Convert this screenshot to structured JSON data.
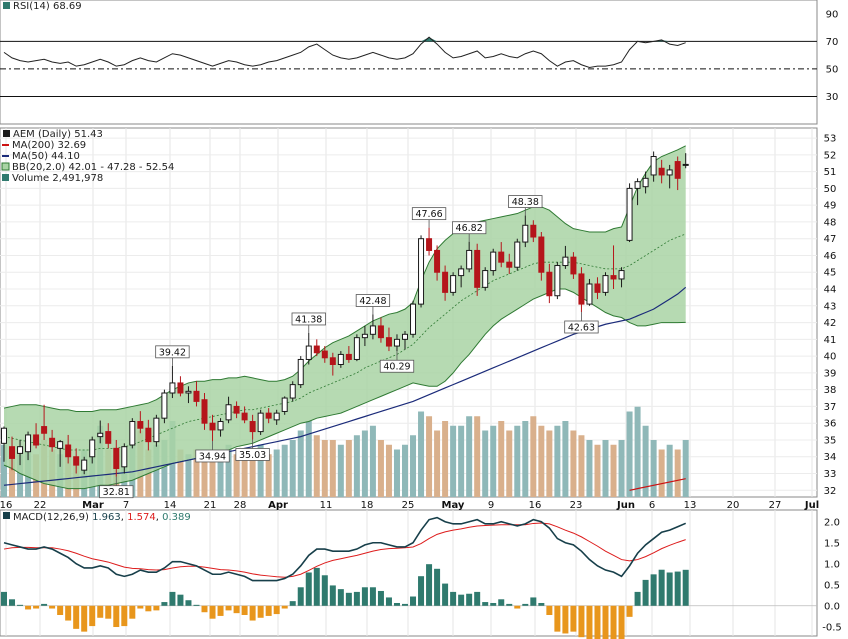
{
  "colors": {
    "up": "#1a1a1a",
    "down": "#b5151b",
    "band_fill": "#a9d4a4",
    "band_line": "#2f7a33",
    "ma200": "#cc1111",
    "ma50": "#1b2b7a",
    "vol_up": "#8fb8b8",
    "vol_down": "#d9b08c",
    "macd_line": "#173f4a",
    "signal_line": "#dd1c1c",
    "hist_pos": "#2f7a6e",
    "hist_neg": "#e8961c",
    "rsi_line": "#222222",
    "rsi_fill": "#2f7a6e"
  },
  "rsi": {
    "label": "RSI(14) 68.69",
    "ticks": [
      "90",
      "70",
      "50",
      "30"
    ],
    "ylim": [
      10,
      100
    ]
  },
  "price": {
    "label": "AEM (Daily) 51.43",
    "legend": [
      {
        "text": "MA(200) 32.69",
        "color": "#cc1111"
      },
      {
        "text": "MA(50) 44.10",
        "color": "#1b2b7a"
      },
      {
        "text": "BB(20,2.0) 42.01 - 47.28 - 52.54",
        "color": "#2f7a33"
      },
      {
        "text": "Volume 2,491,978",
        "color": "#2f7a6e"
      }
    ],
    "ticks": [
      "53",
      "52",
      "51",
      "50",
      "49",
      "48",
      "47",
      "46",
      "45",
      "44",
      "43",
      "42",
      "41",
      "40",
      "39",
      "38",
      "37",
      "36",
      "35",
      "34",
      "33",
      "32"
    ]
  },
  "xaxis": [
    {
      "label": "16",
      "month": false
    },
    {
      "label": "22",
      "month": false
    },
    {
      "label": "Mar",
      "month": true
    },
    {
      "label": "7",
      "month": false
    },
    {
      "label": "14",
      "month": false
    },
    {
      "label": "21",
      "month": false
    },
    {
      "label": "28",
      "month": false
    },
    {
      "label": "Apr",
      "month": true
    },
    {
      "label": "11",
      "month": false
    },
    {
      "label": "18",
      "month": false
    },
    {
      "label": "25",
      "month": false
    },
    {
      "label": "May",
      "month": true
    },
    {
      "label": "9",
      "month": false
    },
    {
      "label": "16",
      "month": false
    },
    {
      "label": "23",
      "month": false
    },
    {
      "label": "Jun",
      "month": true
    },
    {
      "label": "6",
      "month": false
    },
    {
      "label": "13",
      "month": false
    },
    {
      "label": "20",
      "month": false
    },
    {
      "label": "27",
      "month": false
    },
    {
      "label": "Jul",
      "month": true
    }
  ],
  "macd": {
    "label_prefix": "MACD(12,26,9)",
    "macd_value": "1.963",
    "signal_value": "1.574",
    "hist_value": "0.389",
    "ticks": [
      "2.0",
      "1.5",
      "1.0",
      "0.5",
      "0.0",
      "-0.5"
    ]
  },
  "chart_data": {
    "type": "candlestick",
    "title": "AEM (Daily) 51.43",
    "ylim": [
      31.6,
      53.6
    ],
    "candles": [
      {
        "o": 34.8,
        "h": 35.8,
        "l": 33.7,
        "c": 35.7
      },
      {
        "o": 34.6,
        "h": 35.2,
        "l": 33.2,
        "c": 33.9
      },
      {
        "o": 34.2,
        "h": 35.0,
        "l": 33.5,
        "c": 34.6
      },
      {
        "o": 34.3,
        "h": 35.5,
        "l": 33.8,
        "c": 35.3
      },
      {
        "o": 35.3,
        "h": 36.0,
        "l": 34.5,
        "c": 34.7
      },
      {
        "o": 35.8,
        "h": 37.1,
        "l": 35.0,
        "c": 35.4
      },
      {
        "o": 35.1,
        "h": 35.6,
        "l": 34.3,
        "c": 34.6
      },
      {
        "o": 34.5,
        "h": 35.0,
        "l": 33.4,
        "c": 34.9
      },
      {
        "o": 34.7,
        "h": 35.3,
        "l": 33.6,
        "c": 34.0
      },
      {
        "o": 34.0,
        "h": 34.5,
        "l": 33.0,
        "c": 33.5
      },
      {
        "o": 33.2,
        "h": 34.0,
        "l": 32.96,
        "c": 33.8
      },
      {
        "o": 34.0,
        "h": 35.2,
        "l": 33.6,
        "c": 35.0
      },
      {
        "o": 35.2,
        "h": 36.16,
        "l": 34.8,
        "c": 35.4
      },
      {
        "o": 35.5,
        "h": 36.0,
        "l": 34.5,
        "c": 34.8
      },
      {
        "o": 34.5,
        "h": 35.0,
        "l": 32.81,
        "c": 33.3
      },
      {
        "o": 33.4,
        "h": 34.8,
        "l": 33.0,
        "c": 34.6
      },
      {
        "o": 34.7,
        "h": 36.3,
        "l": 34.5,
        "c": 36.1
      },
      {
        "o": 36.1,
        "h": 36.72,
        "l": 35.4,
        "c": 35.7
      },
      {
        "o": 35.7,
        "h": 36.2,
        "l": 34.38,
        "c": 34.9
      },
      {
        "o": 34.9,
        "h": 36.5,
        "l": 34.6,
        "c": 36.3
      },
      {
        "o": 36.3,
        "h": 38.0,
        "l": 36.0,
        "c": 37.8
      },
      {
        "o": 37.8,
        "h": 39.42,
        "l": 37.5,
        "c": 38.4
      },
      {
        "o": 38.4,
        "h": 38.8,
        "l": 37.6,
        "c": 37.8
      },
      {
        "o": 37.8,
        "h": 38.2,
        "l": 37.2,
        "c": 37.9
      },
      {
        "o": 37.9,
        "h": 38.5,
        "l": 37.0,
        "c": 37.3
      },
      {
        "o": 37.4,
        "h": 37.8,
        "l": 35.6,
        "c": 36.0
      },
      {
        "o": 36.0,
        "h": 36.5,
        "l": 34.94,
        "c": 35.6
      },
      {
        "o": 35.6,
        "h": 36.3,
        "l": 35.2,
        "c": 36.1
      },
      {
        "o": 36.2,
        "h": 37.58,
        "l": 36.0,
        "c": 37.1
      },
      {
        "o": 37.0,
        "h": 37.3,
        "l": 36.3,
        "c": 36.6
      },
      {
        "o": 36.6,
        "h": 37.0,
        "l": 36.0,
        "c": 36.2
      },
      {
        "o": 36.1,
        "h": 36.5,
        "l": 35.03,
        "c": 35.5
      },
      {
        "o": 35.5,
        "h": 36.8,
        "l": 35.3,
        "c": 36.6
      },
      {
        "o": 36.6,
        "h": 36.9,
        "l": 36.0,
        "c": 36.3
      },
      {
        "o": 36.2,
        "h": 36.8,
        "l": 35.9,
        "c": 36.6
      },
      {
        "o": 36.7,
        "h": 37.6,
        "l": 36.5,
        "c": 37.5
      },
      {
        "o": 37.5,
        "h": 38.5,
        "l": 37.3,
        "c": 38.3
      },
      {
        "o": 38.3,
        "h": 40.0,
        "l": 38.1,
        "c": 39.8
      },
      {
        "o": 39.8,
        "h": 41.38,
        "l": 39.5,
        "c": 40.6
      },
      {
        "o": 40.6,
        "h": 41.0,
        "l": 40.0,
        "c": 40.2
      },
      {
        "o": 40.3,
        "h": 40.6,
        "l": 39.6,
        "c": 39.9
      },
      {
        "o": 39.9,
        "h": 40.2,
        "l": 38.84,
        "c": 39.5
      },
      {
        "o": 39.5,
        "h": 40.3,
        "l": 39.3,
        "c": 40.1
      },
      {
        "o": 40.1,
        "h": 40.6,
        "l": 39.6,
        "c": 39.8
      },
      {
        "o": 39.8,
        "h": 41.3,
        "l": 39.7,
        "c": 41.1
      },
      {
        "o": 41.1,
        "h": 41.8,
        "l": 40.6,
        "c": 41.3
      },
      {
        "o": 41.3,
        "h": 42.48,
        "l": 41.0,
        "c": 41.8
      },
      {
        "o": 41.8,
        "h": 42.3,
        "l": 40.8,
        "c": 41.1
      },
      {
        "o": 41.1,
        "h": 41.7,
        "l": 40.3,
        "c": 40.6
      },
      {
        "o": 40.6,
        "h": 41.3,
        "l": 40.29,
        "c": 41.0
      },
      {
        "o": 41.0,
        "h": 41.5,
        "l": 40.4,
        "c": 41.3
      },
      {
        "o": 41.3,
        "h": 43.3,
        "l": 41.1,
        "c": 43.1
      },
      {
        "o": 43.1,
        "h": 47.2,
        "l": 42.9,
        "c": 47.0
      },
      {
        "o": 47.0,
        "h": 47.66,
        "l": 46.0,
        "c": 46.3
      },
      {
        "o": 46.3,
        "h": 46.6,
        "l": 44.5,
        "c": 45.0
      },
      {
        "o": 45.0,
        "h": 45.4,
        "l": 43.3,
        "c": 43.8
      },
      {
        "o": 43.8,
        "h": 45.0,
        "l": 43.6,
        "c": 44.8
      },
      {
        "o": 44.8,
        "h": 45.4,
        "l": 44.1,
        "c": 45.2
      },
      {
        "o": 45.2,
        "h": 46.82,
        "l": 45.0,
        "c": 46.3
      },
      {
        "o": 46.3,
        "h": 46.7,
        "l": 43.59,
        "c": 44.1
      },
      {
        "o": 44.1,
        "h": 45.3,
        "l": 43.9,
        "c": 45.1
      },
      {
        "o": 45.1,
        "h": 46.4,
        "l": 44.8,
        "c": 46.2
      },
      {
        "o": 46.2,
        "h": 46.8,
        "l": 45.3,
        "c": 45.6
      },
      {
        "o": 45.6,
        "h": 46.1,
        "l": 44.9,
        "c": 45.3
      },
      {
        "o": 45.3,
        "h": 47.0,
        "l": 45.1,
        "c": 46.8
      },
      {
        "o": 46.8,
        "h": 48.38,
        "l": 46.5,
        "c": 47.8
      },
      {
        "o": 47.8,
        "h": 48.1,
        "l": 46.8,
        "c": 47.1
      },
      {
        "o": 47.1,
        "h": 47.4,
        "l": 44.5,
        "c": 45.0
      },
      {
        "o": 45.0,
        "h": 45.5,
        "l": 43.16,
        "c": 43.6
      },
      {
        "o": 43.6,
        "h": 45.6,
        "l": 43.4,
        "c": 45.4
      },
      {
        "o": 45.4,
        "h": 46.57,
        "l": 45.2,
        "c": 45.9
      },
      {
        "o": 45.9,
        "h": 46.2,
        "l": 44.6,
        "c": 44.9
      },
      {
        "o": 44.9,
        "h": 45.3,
        "l": 42.63,
        "c": 43.1
      },
      {
        "o": 43.1,
        "h": 44.6,
        "l": 43.0,
        "c": 44.3
      },
      {
        "o": 44.3,
        "h": 44.7,
        "l": 43.4,
        "c": 43.8
      },
      {
        "o": 43.8,
        "h": 45.0,
        "l": 43.6,
        "c": 44.8
      },
      {
        "o": 44.8,
        "h": 46.6,
        "l": 44.0,
        "c": 44.6
      },
      {
        "o": 44.6,
        "h": 45.3,
        "l": 44.1,
        "c": 45.1
      },
      {
        "o": 46.9,
        "h": 50.3,
        "l": 46.8,
        "c": 50.0
      },
      {
        "o": 50.0,
        "h": 50.6,
        "l": 49.0,
        "c": 50.4
      },
      {
        "o": 50.1,
        "h": 51.0,
        "l": 49.7,
        "c": 50.6
      },
      {
        "o": 50.8,
        "h": 52.2,
        "l": 50.4,
        "c": 51.9
      },
      {
        "o": 51.2,
        "h": 51.7,
        "l": 50.3,
        "c": 50.8
      },
      {
        "o": 50.8,
        "h": 51.4,
        "l": 50.0,
        "c": 51.1
      },
      {
        "o": 51.6,
        "h": 51.9,
        "l": 49.9,
        "c": 50.6
      },
      {
        "o": 51.4,
        "h": 52.1,
        "l": 51.2,
        "c": 51.43
      }
    ],
    "bollinger": {
      "upper": [
        36.9,
        37.0,
        37.1,
        37.1,
        37.1,
        37.0,
        36.9,
        36.8,
        36.8,
        36.7,
        36.7,
        36.7,
        36.8,
        36.8,
        36.8,
        36.9,
        37.0,
        37.1,
        37.2,
        37.4,
        37.7,
        38.0,
        38.2,
        38.4,
        38.5,
        38.5,
        38.6,
        38.6,
        38.7,
        38.7,
        38.8,
        38.7,
        38.6,
        38.5,
        38.5,
        38.6,
        38.8,
        39.2,
        39.7,
        40.1,
        40.5,
        40.8,
        41.0,
        41.2,
        41.5,
        41.8,
        42.1,
        42.3,
        42.5,
        42.6,
        42.8,
        43.2,
        44.5,
        45.6,
        46.4,
        46.9,
        47.3,
        47.6,
        47.8,
        48.0,
        48.1,
        48.2,
        48.3,
        48.4,
        48.5,
        48.7,
        48.9,
        48.9,
        48.7,
        48.3,
        47.9,
        47.6,
        47.5,
        47.4,
        47.4,
        47.4,
        47.6,
        47.7,
        48.9,
        50.1,
        50.9,
        51.6,
        51.9,
        52.1,
        52.3,
        52.54
      ],
      "middle": [
        35.2,
        35.1,
        35.0,
        34.9,
        34.8,
        34.7,
        34.6,
        34.5,
        34.4,
        34.4,
        34.4,
        34.4,
        34.5,
        34.5,
        34.5,
        34.6,
        34.7,
        34.9,
        35.1,
        35.3,
        35.5,
        35.7,
        35.9,
        36.1,
        36.2,
        36.3,
        36.4,
        36.5,
        36.6,
        36.7,
        36.8,
        36.8,
        36.9,
        37.0,
        37.1,
        37.2,
        37.3,
        37.5,
        37.8,
        38.0,
        38.2,
        38.4,
        38.6,
        38.8,
        39.0,
        39.3,
        39.5,
        39.7,
        39.9,
        40.1,
        40.4,
        40.7,
        41.2,
        41.7,
        42.1,
        42.5,
        42.9,
        43.3,
        43.6,
        43.9,
        44.2,
        44.5,
        44.7,
        44.9,
        45.1,
        45.3,
        45.5,
        45.6,
        45.6,
        45.6,
        45.6,
        45.6,
        45.5,
        45.4,
        45.3,
        45.2,
        45.2,
        45.2,
        45.4,
        45.7,
        46.0,
        46.3,
        46.6,
        46.9,
        47.1,
        47.28
      ],
      "lower": [
        33.5,
        33.3,
        33.0,
        32.8,
        32.6,
        32.4,
        32.3,
        32.2,
        32.1,
        32.1,
        32.1,
        32.2,
        32.3,
        32.3,
        32.4,
        32.5,
        32.6,
        32.8,
        33.0,
        33.2,
        33.4,
        33.6,
        33.7,
        33.8,
        33.9,
        34.0,
        34.1,
        34.3,
        34.4,
        34.6,
        34.7,
        34.8,
        35.0,
        35.2,
        35.4,
        35.6,
        35.8,
        36.0,
        36.1,
        36.3,
        36.4,
        36.5,
        36.6,
        36.8,
        37.0,
        37.2,
        37.4,
        37.6,
        37.8,
        38.0,
        38.2,
        38.4,
        38.3,
        38.2,
        38.2,
        38.5,
        39.0,
        39.6,
        40.1,
        40.7,
        41.3,
        41.8,
        42.2,
        42.5,
        42.8,
        43.1,
        43.4,
        43.6,
        43.8,
        44.0,
        44.0,
        43.8,
        43.5,
        43.2,
        42.9,
        42.6,
        42.4,
        42.3,
        42.0,
        41.8,
        41.8,
        41.9,
        42.0,
        42.0,
        42.0,
        42.01
      ]
    },
    "ma50": [
      32.3,
      32.35,
      32.4,
      32.45,
      32.5,
      32.55,
      32.6,
      32.65,
      32.7,
      32.75,
      32.8,
      32.85,
      32.9,
      32.95,
      33.0,
      33.05,
      33.1,
      33.2,
      33.3,
      33.4,
      33.5,
      33.6,
      33.7,
      33.8,
      33.9,
      34.0,
      34.1,
      34.2,
      34.3,
      34.4,
      34.5,
      34.6,
      34.7,
      34.8,
      34.9,
      35.0,
      35.1,
      35.2,
      35.35,
      35.5,
      35.65,
      35.8,
      35.95,
      36.1,
      36.25,
      36.4,
      36.55,
      36.7,
      36.85,
      37.0,
      37.15,
      37.3,
      37.5,
      37.7,
      37.9,
      38.1,
      38.3,
      38.5,
      38.7,
      38.9,
      39.1,
      39.3,
      39.5,
      39.7,
      39.9,
      40.1,
      40.3,
      40.5,
      40.7,
      40.9,
      41.1,
      41.3,
      41.45,
      41.6,
      41.75,
      41.9,
      42.0,
      42.1,
      42.2,
      42.4,
      42.6,
      42.8,
      43.1,
      43.4,
      43.7,
      44.1
    ],
    "ma200_start": 32.0,
    "ma200_end": 32.69,
    "volume": [
      0.55,
      0.45,
      0.45,
      0.5,
      0.45,
      0.6,
      0.5,
      0.45,
      0.5,
      0.4,
      0.5,
      0.55,
      0.75,
      0.5,
      0.45,
      0.5,
      0.55,
      0.7,
      0.5,
      0.55,
      0.6,
      0.8,
      0.5,
      0.45,
      0.5,
      0.5,
      0.5,
      0.45,
      0.55,
      0.45,
      0.45,
      0.5,
      0.55,
      0.45,
      0.5,
      0.55,
      0.6,
      0.7,
      0.8,
      0.65,
      0.6,
      0.6,
      0.55,
      0.6,
      0.65,
      0.7,
      0.75,
      0.6,
      0.55,
      0.5,
      0.55,
      0.65,
      0.9,
      0.85,
      0.7,
      0.8,
      0.75,
      0.75,
      0.85,
      0.85,
      0.7,
      0.75,
      0.8,
      0.7,
      0.75,
      0.8,
      0.85,
      0.75,
      0.7,
      0.75,
      0.8,
      0.7,
      0.65,
      0.6,
      0.55,
      0.6,
      0.55,
      0.6,
      0.9,
      0.95,
      0.75,
      0.6,
      0.5,
      0.55,
      0.5,
      0.6
    ],
    "rsi": [
      62,
      58,
      56,
      55,
      56,
      57,
      55,
      54,
      55,
      52,
      53,
      55,
      57,
      55,
      52,
      53,
      56,
      58,
      56,
      55,
      58,
      61,
      60,
      58,
      56,
      54,
      52,
      54,
      56,
      55,
      53,
      52,
      53,
      55,
      56,
      58,
      60,
      62,
      66,
      68,
      64,
      60,
      58,
      57,
      58,
      60,
      62,
      60,
      58,
      57,
      58,
      61,
      68,
      73,
      68,
      62,
      58,
      59,
      61,
      63,
      58,
      59,
      61,
      59,
      58,
      61,
      63,
      61,
      56,
      52,
      55,
      56,
      53,
      51,
      52,
      52,
      53,
      55,
      64,
      70,
      69,
      70,
      71,
      68,
      67,
      69
    ],
    "macd": [
      1.5,
      1.45,
      1.4,
      1.35,
      1.35,
      1.4,
      1.35,
      1.25,
      1.15,
      1.0,
      0.9,
      0.9,
      0.95,
      0.9,
      0.75,
      0.7,
      0.75,
      0.85,
      0.8,
      0.8,
      0.9,
      1.05,
      1.05,
      1.0,
      0.95,
      0.85,
      0.75,
      0.75,
      0.8,
      0.75,
      0.7,
      0.6,
      0.6,
      0.6,
      0.6,
      0.65,
      0.75,
      0.95,
      1.2,
      1.35,
      1.35,
      1.3,
      1.3,
      1.3,
      1.35,
      1.45,
      1.5,
      1.5,
      1.45,
      1.4,
      1.4,
      1.5,
      1.8,
      2.05,
      2.1,
      2.0,
      1.95,
      1.95,
      2.0,
      2.05,
      1.95,
      1.95,
      2.0,
      1.95,
      1.9,
      1.95,
      2.05,
      2.0,
      1.85,
      1.6,
      1.5,
      1.45,
      1.3,
      1.1,
      0.95,
      0.85,
      0.8,
      0.7,
      0.95,
      1.25,
      1.45,
      1.6,
      1.75,
      1.8,
      1.88,
      1.963
    ],
    "signal": [
      1.35,
      1.38,
      1.39,
      1.39,
      1.38,
      1.38,
      1.38,
      1.35,
      1.31,
      1.25,
      1.18,
      1.12,
      1.08,
      1.04,
      0.98,
      0.92,
      0.89,
      0.88,
      0.86,
      0.85,
      0.86,
      0.9,
      0.93,
      0.94,
      0.94,
      0.92,
      0.89,
      0.86,
      0.85,
      0.83,
      0.8,
      0.76,
      0.73,
      0.71,
      0.69,
      0.68,
      0.7,
      0.75,
      0.84,
      0.94,
      1.02,
      1.08,
      1.12,
      1.16,
      1.2,
      1.25,
      1.3,
      1.34,
      1.36,
      1.37,
      1.38,
      1.4,
      1.48,
      1.6,
      1.7,
      1.76,
      1.8,
      1.83,
      1.87,
      1.9,
      1.91,
      1.92,
      1.93,
      1.93,
      1.93,
      1.93,
      1.96,
      1.97,
      1.95,
      1.88,
      1.8,
      1.73,
      1.64,
      1.53,
      1.42,
      1.3,
      1.2,
      1.1,
      1.07,
      1.1,
      1.17,
      1.26,
      1.36,
      1.44,
      1.51,
      1.574
    ]
  }
}
